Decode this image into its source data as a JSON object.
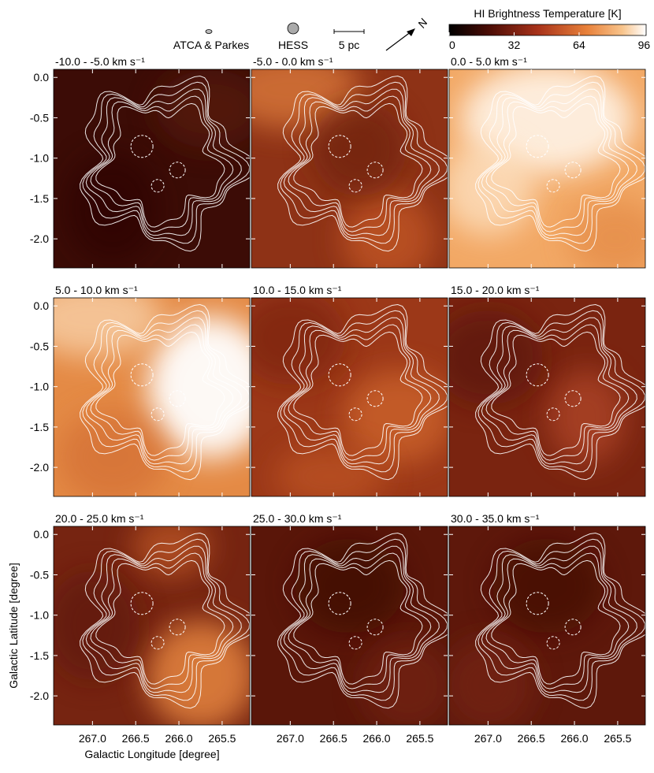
{
  "chart_data": {
    "type": "image_grid",
    "panels": [
      "-10.0 -  -5.0 km s⁻¹",
      "-5.0 -  0.0 km s⁻¹",
      "0.0 -  5.0 km s⁻¹",
      "5.0 -  10.0 km s⁻¹",
      "10.0 -  15.0 km s⁻¹",
      "15.0 -  20.0 km s⁻¹",
      "20.0 -  25.0 km s⁻¹",
      "25.0 -  30.0 km s⁻¹",
      "30.0 -  35.0 km s⁻¹"
    ],
    "xlabel": "Galactic Longitude [degree]",
    "ylabel": "Galactic Latitude [degree]",
    "xlim": [
      267.45,
      265.18
    ],
    "xticks": [
      {
        "value": 267.0,
        "label": "267.0"
      },
      {
        "value": 266.5,
        "label": "266.5"
      },
      {
        "value": 266.0,
        "label": "266.0"
      },
      {
        "value": 265.5,
        "label": "265.5"
      }
    ],
    "ylim": [
      -2.36,
      0.1
    ],
    "yticks": [
      {
        "value": 0,
        "label": "0.0"
      },
      {
        "value": -0.5,
        "label": "-0.5"
      },
      {
        "value": -1.0,
        "label": "-1.0"
      },
      {
        "value": -1.5,
        "label": "-1.5"
      },
      {
        "value": -2.0,
        "label": "-2.0"
      }
    ],
    "colorbar": {
      "title": "HI Brightness Temperature [K]",
      "lim": [
        0,
        97
      ],
      "ticks": [
        0,
        32,
        64,
        96
      ]
    },
    "legend": [
      "ATCA & Parkes",
      "HESS",
      "5 pc"
    ],
    "north": "N"
  }
}
